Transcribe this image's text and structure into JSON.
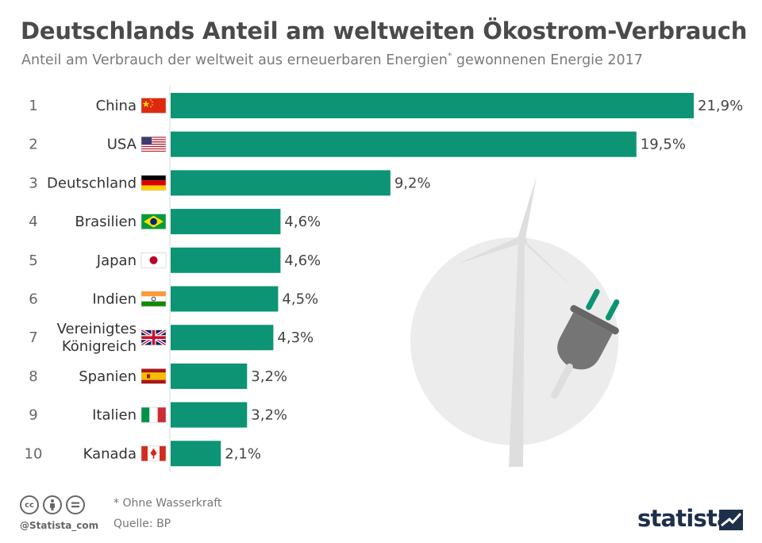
{
  "header": {
    "title": "Deutschlands Anteil am weltweiten Ökostrom-Verbrauch",
    "subtitle_main": "Anteil am Verbrauch der weltweit aus erneuerbaren Energien",
    "subtitle_mark": "*",
    "subtitle_tail": " gewonnenen Energie 2017"
  },
  "chart_data": {
    "type": "bar",
    "orientation": "horizontal",
    "categories": [
      "China",
      "USA",
      "Deutschland",
      "Brasilien",
      "Japan",
      "Indien",
      "Vereinigtes Königreich",
      "Spanien",
      "Italien",
      "Kanada"
    ],
    "ranks": [
      "1",
      "2",
      "3",
      "4",
      "5",
      "6",
      "7",
      "8",
      "9",
      "10"
    ],
    "values": [
      21.9,
      19.5,
      9.2,
      4.6,
      4.6,
      4.5,
      4.3,
      3.2,
      3.2,
      2.1
    ],
    "value_labels": [
      "21,9%",
      "19,5%",
      "9,2%",
      "4,6%",
      "4,6%",
      "4,5%",
      "4,3%",
      "3,2%",
      "3,2%",
      "2,1%"
    ],
    "flags": [
      "flag-china",
      "flag-usa",
      "flag-germany",
      "flag-brazil",
      "flag-japan",
      "flag-india",
      "flag-uk",
      "flag-spain",
      "flag-italy",
      "flag-canada"
    ],
    "bar_color": "#0c9474",
    "grid": false,
    "legend": "none"
  },
  "illustration": {
    "name": "wind-turbine-plug-illustration",
    "circle_color": "#ececec",
    "turbine_color": "#dedede",
    "plug_color": "#757575",
    "prong_color": "#0c9474"
  },
  "footer": {
    "note": "* Ohne Wasserkraft",
    "source": "Quelle: BP",
    "handle": "@Statista_com",
    "brand": "statista",
    "license_icons": [
      "cc-icon",
      "by-icon",
      "nd-icon"
    ]
  }
}
